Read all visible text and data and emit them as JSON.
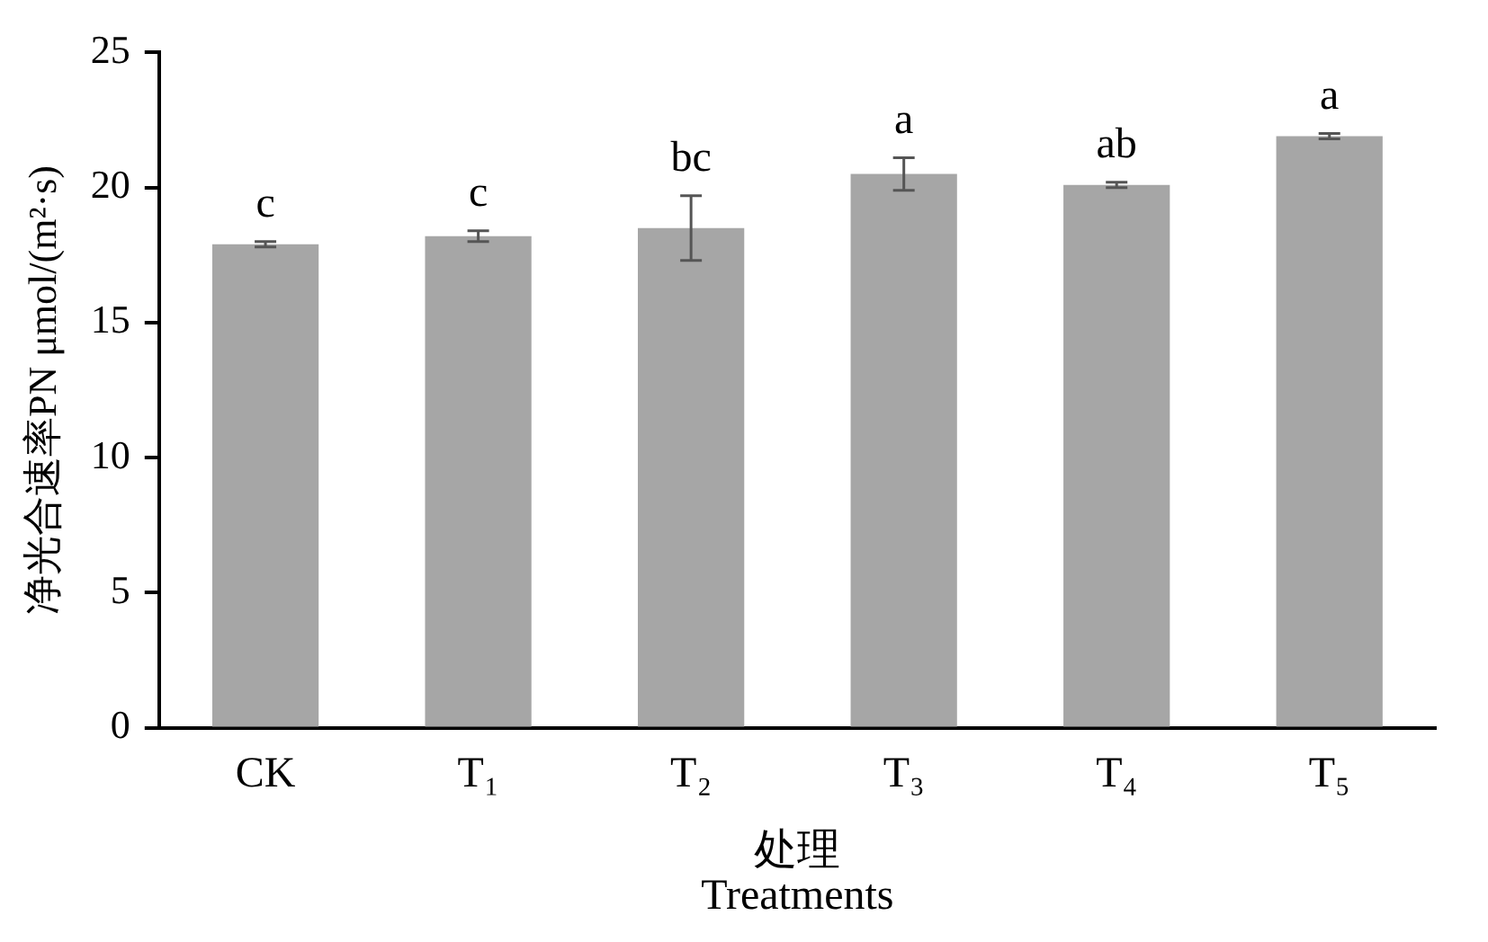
{
  "chart_data": {
    "type": "bar",
    "categories": [
      "CK",
      "T₁",
      "T₂",
      "T₃",
      "T₄",
      "T₅"
    ],
    "values": [
      17.9,
      18.2,
      18.5,
      20.5,
      20.1,
      21.9
    ],
    "errors": [
      0.1,
      0.2,
      1.2,
      0.6,
      0.1,
      0.1
    ],
    "color": "#a6a6a6",
    "ylabel": "净光合速率PN μmol/(m²·s)",
    "xlabel": "处理\nTreatments",
    "ylim": [
      0,
      25
    ],
    "yticks": [
      0,
      5,
      10,
      15,
      20,
      25
    ],
    "grid": false,
    "legend": false,
    "annotations": [
      {
        "text": "c",
        "x": "CK",
        "y": 17.9
      },
      {
        "text": "c",
        "x": "T₁",
        "y": 18.2
      },
      {
        "text": "bc",
        "x": "T₂",
        "y": 18.5
      },
      {
        "text": "a",
        "x": "T₃",
        "y": 20.5
      },
      {
        "text": "ab",
        "x": "T₄",
        "y": 20.1
      },
      {
        "text": "a",
        "x": "T₅",
        "y": 21.9
      }
    ]
  }
}
